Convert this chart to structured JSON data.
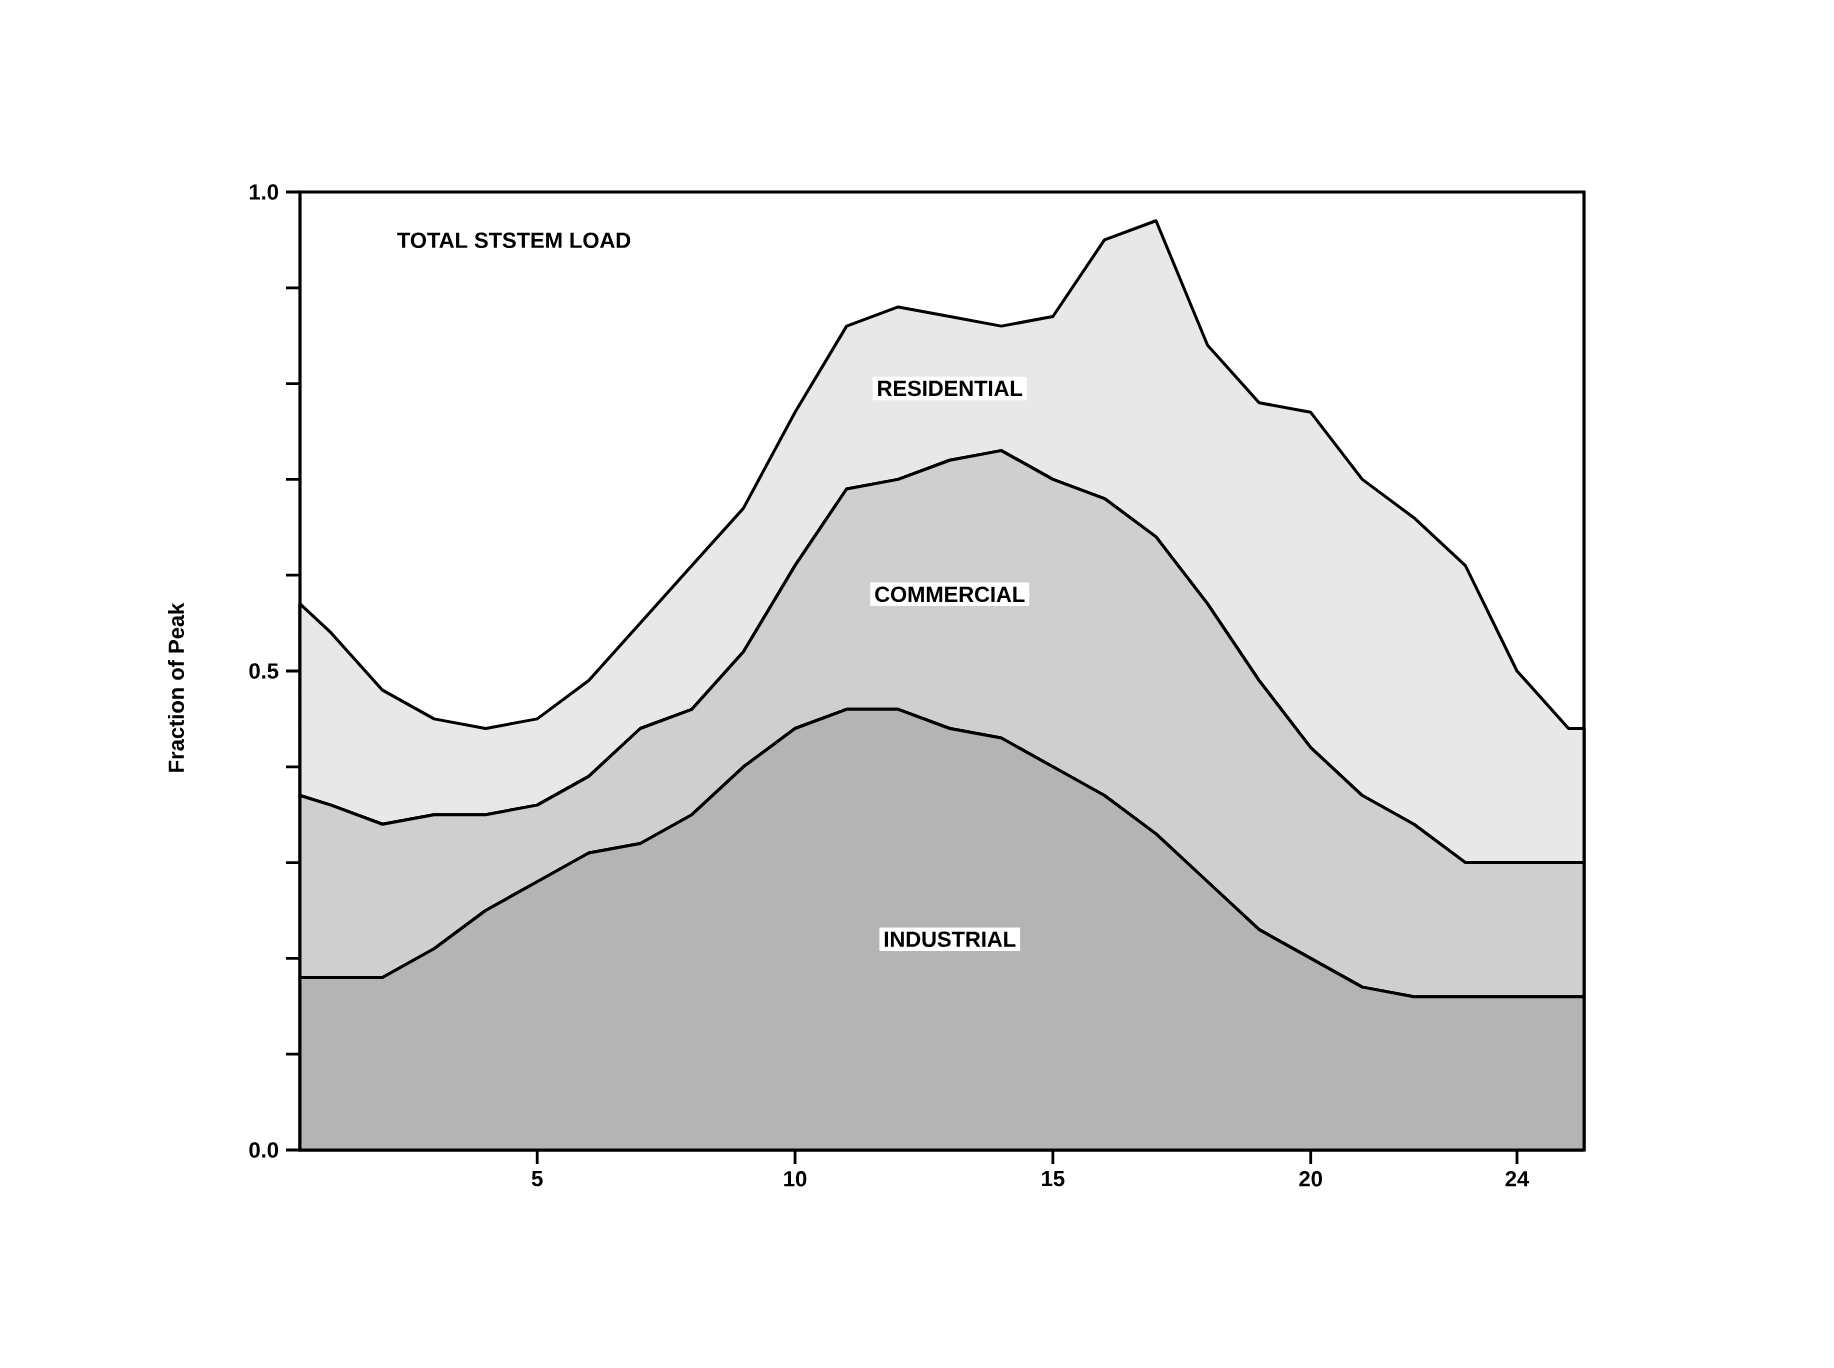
{
  "chart_data": {
    "type": "area",
    "stacked": true,
    "ylabel": "Fraction of Peak",
    "annotations": [
      "TOTAL STSTEM LOAD"
    ],
    "x": [
      0.4,
      1,
      2,
      3,
      4,
      5,
      6,
      7,
      8,
      9,
      10,
      11,
      12,
      13,
      14,
      15,
      16,
      17,
      18,
      19,
      20,
      21,
      22,
      23,
      24,
      25,
      25.3
    ],
    "xlim": [
      0.4,
      25.3
    ],
    "xticks": [
      5,
      10,
      15,
      20,
      24
    ],
    "ylim": [
      0,
      1
    ],
    "yticks": [
      {
        "value": 0,
        "label": "0.0"
      },
      {
        "value": 0.1,
        "label": null
      },
      {
        "value": 0.2,
        "label": null
      },
      {
        "value": 0.3,
        "label": null
      },
      {
        "value": 0.4,
        "label": null
      },
      {
        "value": 0.5,
        "label": "0.5"
      },
      {
        "value": 0.6,
        "label": null
      },
      {
        "value": 0.7,
        "label": null
      },
      {
        "value": 0.8,
        "label": null
      },
      {
        "value": 0.9,
        "label": null
      },
      {
        "value": 1,
        "label": "1.0"
      }
    ],
    "series": [
      {
        "name": "INDUSTRIAL",
        "color": "#b4b4b4",
        "values": [
          0.18,
          0.18,
          0.18,
          0.21,
          0.25,
          0.28,
          0.31,
          0.32,
          0.35,
          0.4,
          0.44,
          0.46,
          0.46,
          0.44,
          0.43,
          0.4,
          0.37,
          0.33,
          0.28,
          0.23,
          0.2,
          0.17,
          0.16,
          0.16,
          0.16,
          0.16,
          0.16
        ]
      },
      {
        "name": "COMMERCIAL",
        "color": "#cfcfcf",
        "values": [
          0.19,
          0.18,
          0.16,
          0.14,
          0.1,
          0.08,
          0.08,
          0.12,
          0.11,
          0.12,
          0.17,
          0.23,
          0.24,
          0.28,
          0.3,
          0.3,
          0.31,
          0.31,
          0.29,
          0.26,
          0.22,
          0.2,
          0.18,
          0.14,
          0.14,
          0.14,
          0.14
        ]
      },
      {
        "name": "RESIDENTIAL",
        "color": "#e8e8e8",
        "values": [
          0.2,
          0.18,
          0.14,
          0.1,
          0.09,
          0.09,
          0.1,
          0.11,
          0.15,
          0.15,
          0.16,
          0.17,
          0.18,
          0.15,
          0.13,
          0.17,
          0.27,
          0.33,
          0.27,
          0.29,
          0.35,
          0.33,
          0.32,
          0.31,
          0.2,
          0.14,
          0.14
        ]
      }
    ]
  }
}
